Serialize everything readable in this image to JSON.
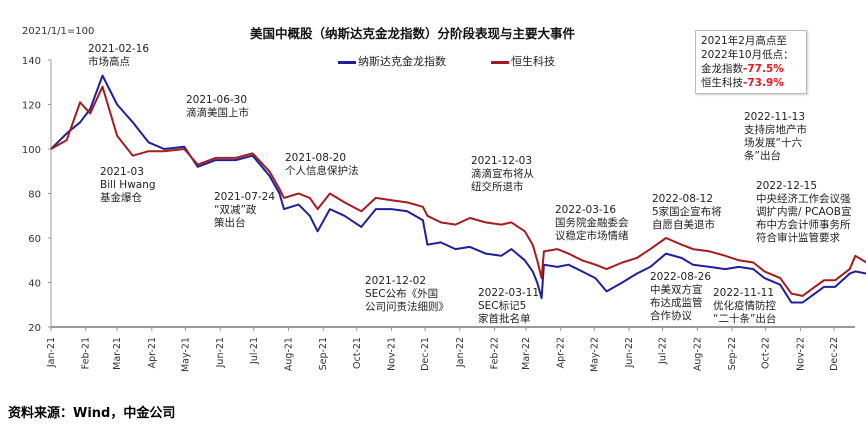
{
  "chart_data": {
    "type": "line",
    "title": "美国中概股（纳斯达克金龙指数）分阶段表现与主要大事件",
    "unit_label": "2021/1/1=100",
    "ylim": [
      20,
      140
    ],
    "yticks": [
      20,
      40,
      60,
      80,
      100,
      120,
      140
    ],
    "xticks": [
      "Jan-21",
      "Feb-21",
      "Mar-21",
      "Apr-21",
      "May-21",
      "Jun-21",
      "Jul-21",
      "Aug-21",
      "Sep-21",
      "Oct-21",
      "Nov-21",
      "Dec-21",
      "Jan-22",
      "Feb-22",
      "Mar-22",
      "Apr-22",
      "May-22",
      "Jun-22",
      "Jul-22",
      "Aug-22",
      "Sep-22",
      "Oct-22",
      "Nov-22",
      "Dec-22"
    ],
    "legend_position": "top",
    "grid": false,
    "x": [
      "2021-01-01",
      "2021-01-15",
      "2021-01-27",
      "2021-02-05",
      "2021-02-16",
      "2021-03-01",
      "2021-03-15",
      "2021-03-29",
      "2021-04-12",
      "2021-04-30",
      "2021-05-12",
      "2021-05-28",
      "2021-06-15",
      "2021-06-30",
      "2021-07-15",
      "2021-07-24",
      "2021-07-28",
      "2021-08-10",
      "2021-08-20",
      "2021-08-27",
      "2021-09-07",
      "2021-09-20",
      "2021-10-05",
      "2021-10-18",
      "2021-11-01",
      "2021-11-15",
      "2021-11-29",
      "2021-12-03",
      "2021-12-15",
      "2021-12-28",
      "2022-01-10",
      "2022-01-24",
      "2022-02-07",
      "2022-02-16",
      "2022-02-28",
      "2022-03-07",
      "2022-03-11",
      "2022-03-15",
      "2022-03-17",
      "2022-03-29",
      "2022-04-08",
      "2022-04-20",
      "2022-05-02",
      "2022-05-12",
      "2022-05-26",
      "2022-06-08",
      "2022-06-20",
      "2022-07-04",
      "2022-07-18",
      "2022-07-28",
      "2022-08-12",
      "2022-08-26",
      "2022-09-07",
      "2022-09-20",
      "2022-09-30",
      "2022-10-14",
      "2022-10-24",
      "2022-11-03",
      "2022-11-11",
      "2022-11-22",
      "2022-12-02",
      "2022-12-15",
      "2022-12-20",
      "2022-12-30"
    ],
    "series": [
      {
        "name": "纳斯达克金龙指数",
        "color": "#1f1f99",
        "values": [
          100,
          107,
          112,
          118,
          133,
          120,
          112,
          103,
          100,
          101,
          92,
          95,
          95,
          97,
          88,
          80,
          73,
          75,
          70,
          63,
          73,
          70,
          65,
          73,
          73,
          72,
          68,
          57,
          58,
          55,
          56,
          53,
          52,
          55,
          50,
          45,
          40,
          33,
          48,
          47,
          48,
          45,
          42,
          36,
          40,
          44,
          47,
          53,
          51,
          48,
          47,
          46,
          47,
          46,
          42,
          39,
          31,
          31,
          34,
          38,
          38,
          44,
          45,
          44
        ]
      },
      {
        "name": "恒生科技",
        "color": "#a51c1c",
        "values": [
          100,
          104,
          121,
          116,
          128,
          106,
          97,
          99,
          99,
          100,
          93,
          96,
          96,
          98,
          90,
          82,
          78,
          80,
          78,
          73,
          80,
          76,
          72,
          78,
          77,
          76,
          74,
          70,
          67,
          66,
          69,
          67,
          66,
          67,
          63,
          57,
          50,
          42,
          54,
          55,
          53,
          50,
          48,
          46,
          49,
          51,
          55,
          60,
          57,
          55,
          54,
          52,
          50,
          49,
          45,
          42,
          35,
          34,
          37,
          41,
          41,
          46,
          52,
          49
        ]
      }
    ]
  },
  "summary_box": {
    "line1": "2021年2月高点至",
    "line2": "2022年10月低点：",
    "item1_label": "金龙指数",
    "item1_value": "-77.5%",
    "item2_label": "恒生科技",
    "item2_value": "-73.9%"
  },
  "annotations": [
    {
      "date": "2021-02-16",
      "text": "市场高点"
    },
    {
      "date": "2021-03",
      "text": "Bill Hwang\n基金爆仓"
    },
    {
      "date": "2021-06-30",
      "text": "滴滴美国上市"
    },
    {
      "date": "2021-07-24",
      "text": "“双减”政\n策出台"
    },
    {
      "date": "2021-08-20",
      "text": "个人信息保护法"
    },
    {
      "date": "2021-12-02",
      "text": "SEC公布《外国\n公司问责法细则》"
    },
    {
      "date": "2021-12-03",
      "text": "滴滴宣布将从\n纽交所退市"
    },
    {
      "date": "2022-03-11",
      "text": "SEC标记5\n家首批名单"
    },
    {
      "date": "2022-03-16",
      "text": "国务院金融委会\n议稳定市场情绪"
    },
    {
      "date": "2022-08-12",
      "text": "5家国企宣布将\n自愿自美退市"
    },
    {
      "date": "2022-08-26",
      "text": "中美双方宣\n布达成监管\n合作协议"
    },
    {
      "date": "2022-11-11",
      "text": "优化疫情防控\n“二十条”出台"
    },
    {
      "date": "2022-11-13",
      "text": "支持房地产市\n场发展“十六\n条”出台"
    },
    {
      "date": "2022-12-15",
      "text": "中央经济工作会议强\n调扩内需/ PCAOB宣\n布中方会计师事务所\n符合审计监管要求"
    }
  ],
  "source": "资料来源：Wind，中金公司"
}
